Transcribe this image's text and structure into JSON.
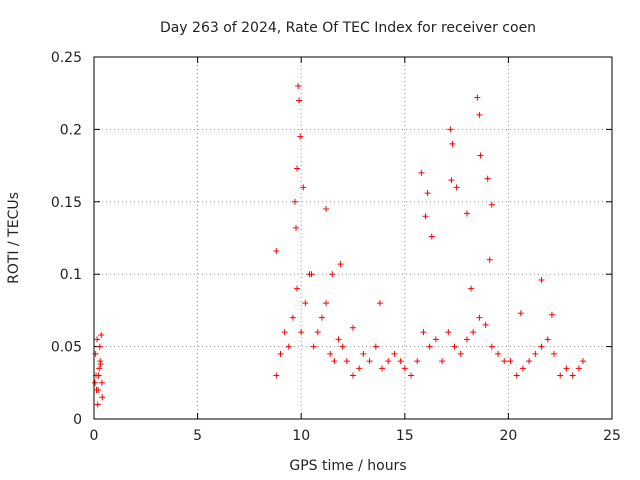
{
  "chart_data": {
    "type": "scatter",
    "title": "Day 263 of 2024, Rate Of TEC Index for receiver coen",
    "xlabel": "GPS time / hours",
    "ylabel": "ROTI / TECUs",
    "xlim": [
      0,
      25
    ],
    "ylim": [
      0,
      0.25
    ],
    "xticks": [
      0,
      5,
      10,
      15,
      20,
      25
    ],
    "yticks": [
      0,
      0.05,
      0.1,
      0.15,
      0.2,
      0.25
    ],
    "grid": true,
    "marker": "+",
    "color": "#ff0000",
    "series": [
      {
        "name": "ROTI",
        "x": [
          0.05,
          0.1,
          0.15,
          0.2,
          0.25,
          0.3,
          0.35,
          0.4,
          0.08,
          0.18,
          0.28,
          0.38,
          0.12,
          0.22,
          0.32,
          8.8,
          9.0,
          9.2,
          9.4,
          9.6,
          9.8,
          10.0,
          10.2,
          10.4,
          10.6,
          10.8,
          11.0,
          11.2,
          11.4,
          11.6,
          11.8,
          12.0,
          12.2,
          12.5,
          12.8,
          13.0,
          13.3,
          13.6,
          13.9,
          14.2,
          14.5,
          14.8,
          15.0,
          15.3,
          15.6,
          15.9,
          16.2,
          16.5,
          16.8,
          17.1,
          17.4,
          17.7,
          18.0,
          18.3,
          18.6,
          18.9,
          19.2,
          19.5,
          19.8,
          20.1,
          20.4,
          20.7,
          21.0,
          21.3,
          21.6,
          21.9,
          22.2,
          22.5,
          22.8,
          23.1,
          23.4,
          23.6,
          8.8,
          9.8,
          9.85,
          9.9,
          9.95,
          10.1,
          10.5,
          11.2,
          11.5,
          11.9,
          12.5,
          13.8,
          15.8,
          16.1,
          16.3,
          17.2,
          17.3,
          17.5,
          18.0,
          18.5,
          18.6,
          18.65,
          19.0,
          19.2,
          20.6,
          21.6,
          22.1,
          9.7,
          9.75,
          16.0,
          17.25,
          18.2,
          19.1
        ],
        "y": [
          0.025,
          0.03,
          0.055,
          0.02,
          0.035,
          0.04,
          0.058,
          0.015,
          0.045,
          0.01,
          0.05,
          0.025,
          0.02,
          0.03,
          0.038,
          0.03,
          0.045,
          0.06,
          0.05,
          0.07,
          0.09,
          0.06,
          0.08,
          0.1,
          0.05,
          0.06,
          0.07,
          0.08,
          0.045,
          0.04,
          0.055,
          0.05,
          0.04,
          0.03,
          0.035,
          0.045,
          0.04,
          0.05,
          0.035,
          0.04,
          0.045,
          0.04,
          0.035,
          0.03,
          0.04,
          0.06,
          0.05,
          0.055,
          0.04,
          0.06,
          0.05,
          0.045,
          0.055,
          0.06,
          0.07,
          0.065,
          0.05,
          0.045,
          0.04,
          0.04,
          0.03,
          0.035,
          0.04,
          0.045,
          0.05,
          0.055,
          0.045,
          0.03,
          0.035,
          0.03,
          0.035,
          0.04,
          0.116,
          0.173,
          0.23,
          0.22,
          0.195,
          0.16,
          0.1,
          0.145,
          0.1,
          0.107,
          0.063,
          0.08,
          0.17,
          0.156,
          0.126,
          0.2,
          0.19,
          0.16,
          0.142,
          0.222,
          0.21,
          0.182,
          0.166,
          0.148,
          0.073,
          0.096,
          0.072,
          0.15,
          0.132,
          0.14,
          0.165,
          0.09,
          0.11
        ]
      }
    ]
  }
}
